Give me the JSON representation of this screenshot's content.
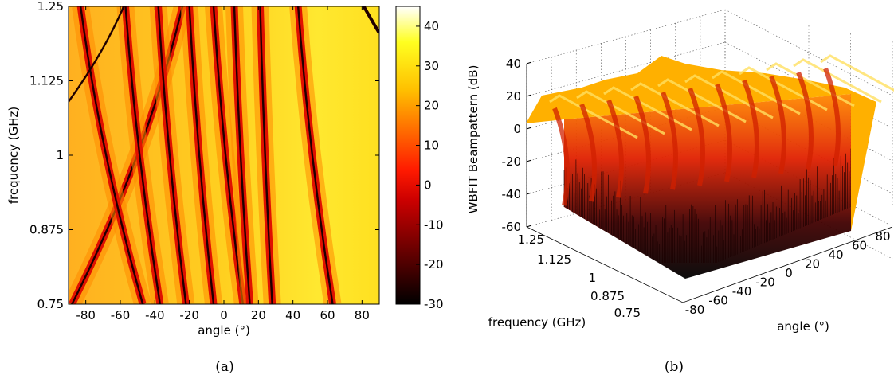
{
  "panels": {
    "a": {
      "caption": "(a)"
    },
    "b": {
      "caption": "(b)"
    }
  },
  "chart_data": [
    {
      "type": "heatmap",
      "xlabel": "angle (°)",
      "ylabel": "frequency (GHz)",
      "xlim": [
        -90,
        90
      ],
      "ylim": [
        0.75,
        1.25
      ],
      "xticks": [
        "-80",
        "-60",
        "-40",
        "-20",
        "0",
        "20",
        "40",
        "60",
        "80"
      ],
      "yticks": [
        "0.75",
        "0.875",
        "1",
        "1.125",
        "1.25"
      ],
      "colorbar": {
        "range": [
          -30,
          45
        ],
        "ticks": [
          "-30",
          "-20",
          "-10",
          "0",
          "10",
          "20",
          "30",
          "40"
        ],
        "colormap": "hot"
      },
      "null_curves_angle_deg_at_f_0_75_and_1_25": [
        [
          -88,
          -24
        ],
        [
          -47,
          -83
        ],
        [
          -37,
          -57
        ],
        [
          -22,
          -38
        ],
        [
          -6,
          -20
        ],
        [
          11,
          -6
        ],
        [
          15,
          6
        ],
        [
          28,
          21
        ],
        [
          63,
          43
        ]
      ],
      "grid": false
    },
    {
      "type": "surface",
      "zlabel": "WBFIT Beampattern (dB)",
      "xlabel": "angle (°)",
      "ylabel": "frequency (GHz)",
      "zlim": [
        -60,
        40
      ],
      "zticks": [
        "-60",
        "-40",
        "-20",
        "0",
        "20",
        "40"
      ],
      "xticks": [
        "-80",
        "-60",
        "-40",
        "-20",
        "0",
        "20",
        "40",
        "60",
        "80"
      ],
      "yticks": [
        "0.75",
        "0.875",
        "1",
        "1.125",
        "1.25"
      ],
      "colormap": "hot",
      "grid": true
    }
  ]
}
